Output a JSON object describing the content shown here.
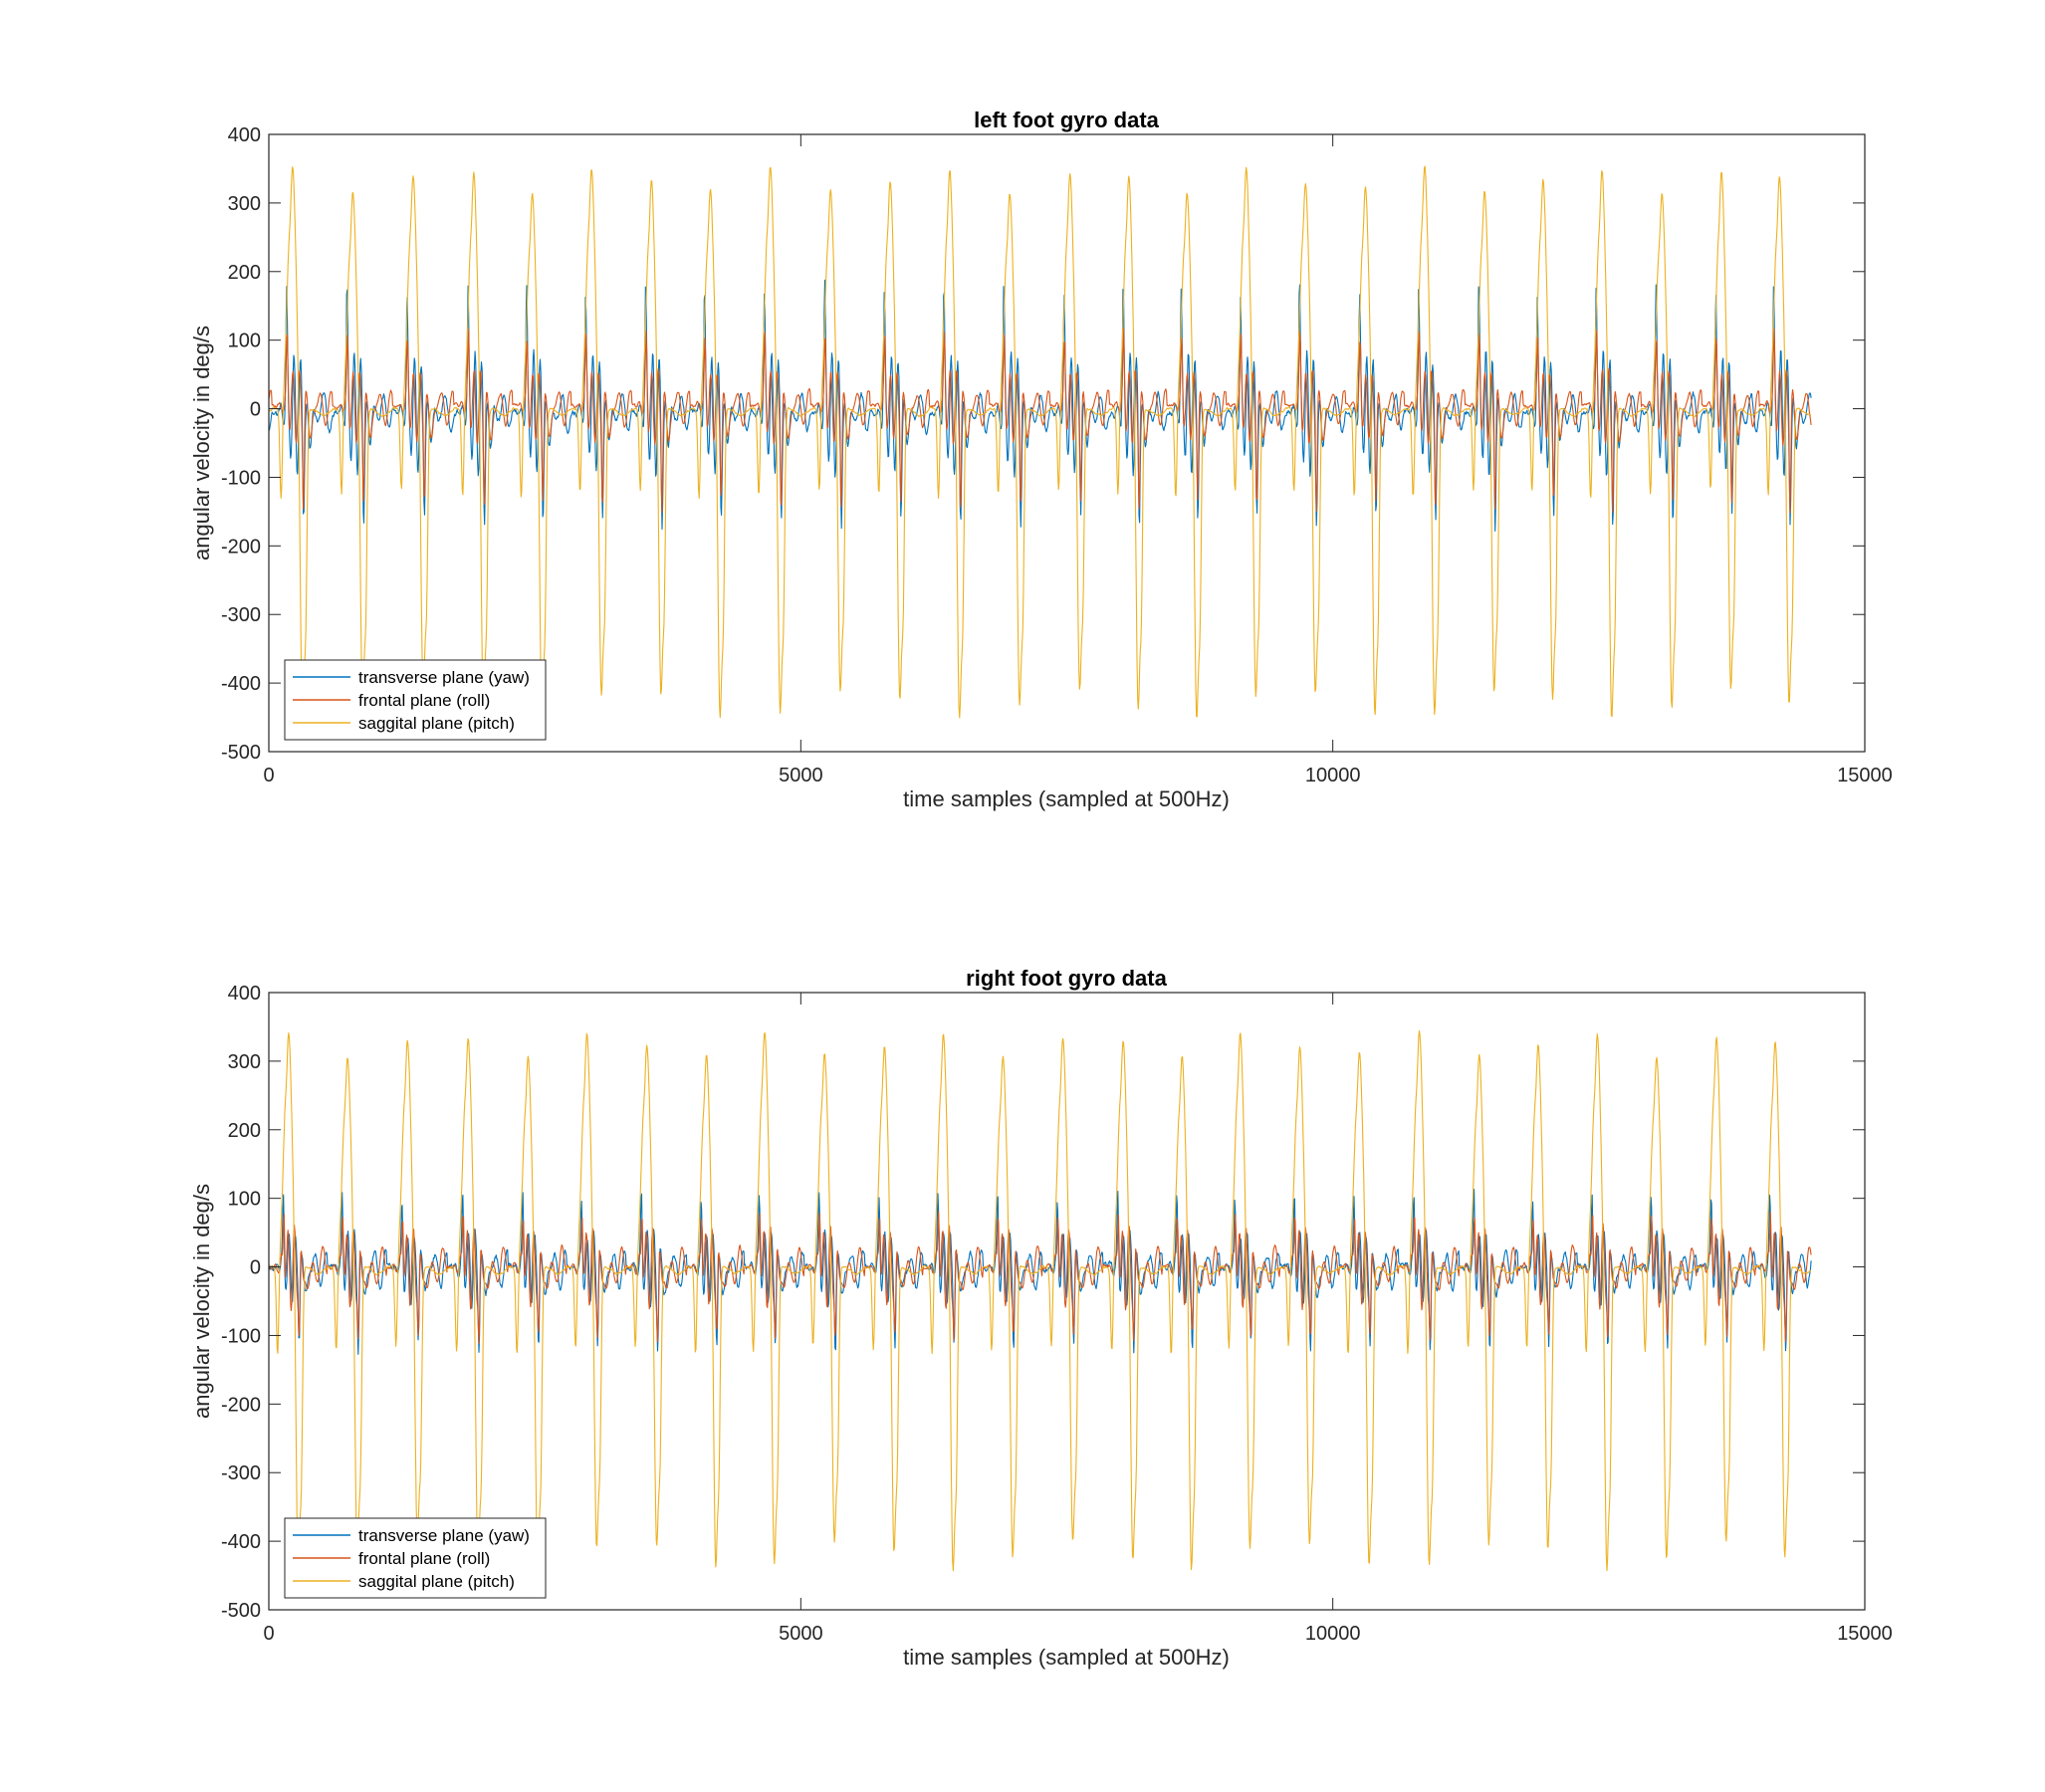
{
  "chart_data": [
    {
      "type": "line",
      "title": "left foot gyro data",
      "xlabel": "time samples (sampled at 500Hz)",
      "ylabel": "angular velocity in deg/s",
      "xlim": [
        0,
        15000
      ],
      "ylim": [
        -500,
        400
      ],
      "x_ticks": [
        "0",
        "5000",
        "10000",
        "15000"
      ],
      "y_ticks": [
        "400",
        "300",
        "200",
        "100",
        "0",
        "-100",
        "-200",
        "-300",
        "-400",
        "-500"
      ],
      "grid": false,
      "legend_position": "bottom-left",
      "sample_count": 14500,
      "stride_starts": [
        30,
        600,
        1160,
        1740,
        2290,
        2840,
        3410,
        3960,
        4520,
        5090,
        5650,
        6210,
        6770,
        7340,
        7900,
        8440,
        9000,
        9550,
        10120,
        10670,
        11240,
        11790,
        12340,
        12900,
        13470,
        14010
      ],
      "series": [
        {
          "name": "transverse plane (yaw)",
          "color": "#0072BD",
          "baseline": -5,
          "swing_peak": 150,
          "swing_trough": -110,
          "noise": 12
        },
        {
          "name": "frontal plane (roll)",
          "color": "#D95319",
          "baseline": 5,
          "swing_peak": 90,
          "swing_trough": -120,
          "noise": 6
        },
        {
          "name": "saggital plane (pitch)",
          "color": "#EDB120",
          "baseline": 0,
          "swing_peak": 345,
          "swing_trough": -440,
          "noise": 4
        }
      ]
    },
    {
      "type": "line",
      "title": "right foot gyro data",
      "xlabel": "time samples (sampled at 500Hz)",
      "ylabel": "angular velocity in deg/s",
      "xlim": [
        0,
        15000
      ],
      "ylim": [
        -500,
        400
      ],
      "x_ticks": [
        "0",
        "5000",
        "10000",
        "15000"
      ],
      "y_ticks": [
        "400",
        "300",
        "200",
        "100",
        "0",
        "-100",
        "-200",
        "-300",
        "-400",
        "-500"
      ],
      "grid": false,
      "legend_position": "bottom-left",
      "sample_count": 14500,
      "stride_starts": [
        0,
        550,
        1110,
        1680,
        2250,
        2800,
        3360,
        3930,
        4470,
        5030,
        5600,
        6150,
        6710,
        7270,
        7840,
        8400,
        8940,
        9500,
        10060,
        10620,
        11190,
        11740,
        12300,
        12850,
        13420,
        13970
      ],
      "series": [
        {
          "name": "transverse plane (yaw)",
          "color": "#0072BD",
          "baseline": 0,
          "swing_peak": 90,
          "swing_trough": -90,
          "noise": 12
        },
        {
          "name": "frontal plane (roll)",
          "color": "#D95319",
          "baseline": 0,
          "swing_peak": 100,
          "swing_trough": -100,
          "noise": 6
        },
        {
          "name": "saggital plane (pitch)",
          "color": "#EDB120",
          "baseline": 0,
          "swing_peak": 335,
          "swing_trough": -430,
          "noise": 4
        }
      ]
    }
  ]
}
